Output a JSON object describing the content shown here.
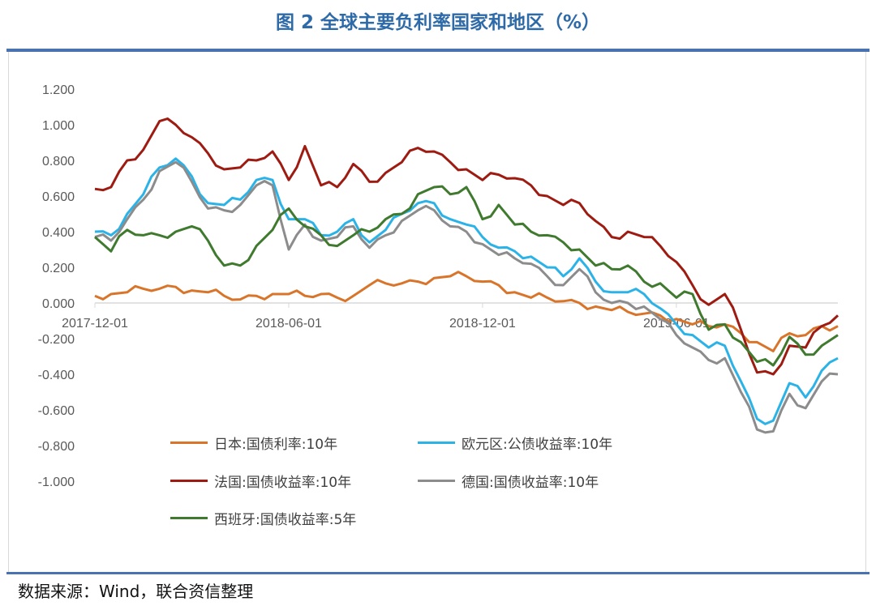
{
  "title": "图 2 全球主要负利率国家和地区（%）",
  "footer": "数据来源：Wind，联合资信整理",
  "chart_data": {
    "type": "line",
    "title": "图 2 全球主要负利率国家和地区（%）",
    "xlabel": "",
    "ylabel": "",
    "ylim": [
      -1.0,
      1.2
    ],
    "yticks": [
      "1.200",
      "1.000",
      "0.800",
      "0.600",
      "0.400",
      "0.200",
      "0.000",
      "-0.200",
      "-0.400",
      "-0.600",
      "-0.800",
      "-1.000"
    ],
    "ytick_values": [
      1.2,
      1.0,
      0.8,
      0.6,
      0.4,
      0.2,
      0,
      -0.2,
      -0.4,
      -0.6,
      -0.8,
      -1.0
    ],
    "xticks": [
      "2017-12-01",
      "2018-06-01",
      "2018-12-01",
      "2019-06-01"
    ],
    "xtick_index": [
      0,
      12,
      24,
      36
    ],
    "grid": false,
    "legend_placement": "bottom-left-inside",
    "x": [
      "2017-12-01",
      "2017-12-16",
      "2018-01-01",
      "2018-01-16",
      "2018-02-01",
      "2018-02-16",
      "2018-03-01",
      "2018-03-16",
      "2018-04-01",
      "2018-04-16",
      "2018-05-01",
      "2018-05-16",
      "2018-06-01",
      "2018-06-16",
      "2018-07-01",
      "2018-07-16",
      "2018-08-01",
      "2018-08-16",
      "2018-09-01",
      "2018-09-16",
      "2018-10-01",
      "2018-10-16",
      "2018-11-01",
      "2018-11-16",
      "2018-12-01",
      "2018-12-16",
      "2019-01-01",
      "2019-01-16",
      "2019-02-01",
      "2019-02-16",
      "2019-03-01",
      "2019-03-16",
      "2019-04-01",
      "2019-04-16",
      "2019-05-01",
      "2019-05-16",
      "2019-06-01",
      "2019-06-16",
      "2019-07-01",
      "2019-07-16",
      "2019-08-01",
      "2019-08-16",
      "2019-09-01",
      "2019-09-16",
      "2019-10-01",
      "2019-10-16",
      "2019-10-31"
    ],
    "series": [
      {
        "name": "日本:国债利率:10年",
        "color": "#d9752b",
        "values": [
          0.04,
          0.05,
          0.06,
          0.08,
          0.08,
          0.09,
          0.07,
          0.06,
          0.04,
          0.02,
          0.04,
          0.05,
          0.05,
          0.04,
          0.05,
          0.03,
          0.04,
          0.1,
          0.11,
          0.11,
          0.12,
          0.14,
          0.15,
          0.15,
          0.12,
          0.1,
          0.06,
          0.03,
          0.03,
          0.01,
          0.0,
          -0.02,
          -0.04,
          -0.05,
          -0.06,
          -0.07,
          -0.09,
          -0.12,
          -0.13,
          -0.12,
          -0.17,
          -0.22,
          -0.27,
          -0.17,
          -0.18,
          -0.13,
          -0.13
        ]
      },
      {
        "name": "欧元区:公债收益率:10年",
        "color": "#2bb3e8",
        "values": [
          0.4,
          0.38,
          0.5,
          0.61,
          0.76,
          0.81,
          0.71,
          0.56,
          0.55,
          0.58,
          0.69,
          0.69,
          0.47,
          0.47,
          0.38,
          0.4,
          0.47,
          0.34,
          0.41,
          0.5,
          0.56,
          0.56,
          0.47,
          0.44,
          0.37,
          0.31,
          0.29,
          0.26,
          0.2,
          0.15,
          0.25,
          0.12,
          0.06,
          0.06,
          0.05,
          -0.03,
          -0.12,
          -0.18,
          -0.25,
          -0.24,
          -0.44,
          -0.65,
          -0.66,
          -0.45,
          -0.53,
          -0.38,
          -0.31
        ]
      },
      {
        "name": "法国:国债收益率:10年",
        "color": "#9e1b12",
        "values": [
          0.64,
          0.65,
          0.8,
          0.86,
          1.02,
          1.0,
          0.93,
          0.84,
          0.75,
          0.76,
          0.8,
          0.85,
          0.69,
          0.88,
          0.66,
          0.65,
          0.78,
          0.68,
          0.73,
          0.79,
          0.87,
          0.85,
          0.79,
          0.75,
          0.69,
          0.72,
          0.7,
          0.66,
          0.6,
          0.55,
          0.56,
          0.46,
          0.37,
          0.4,
          0.37,
          0.32,
          0.23,
          0.1,
          -0.01,
          0.05,
          -0.15,
          -0.39,
          -0.4,
          -0.24,
          -0.25,
          -0.13,
          -0.07
        ]
      },
      {
        "name": "德国:国债收益率:10年",
        "color": "#8c8c8c",
        "values": [
          0.37,
          0.35,
          0.47,
          0.58,
          0.74,
          0.79,
          0.68,
          0.53,
          0.52,
          0.55,
          0.66,
          0.66,
          0.3,
          0.44,
          0.35,
          0.37,
          0.43,
          0.31,
          0.38,
          0.46,
          0.52,
          0.52,
          0.43,
          0.4,
          0.33,
          0.27,
          0.25,
          0.22,
          0.15,
          0.1,
          0.19,
          0.06,
          0.0,
          0.0,
          -0.02,
          -0.09,
          -0.18,
          -0.25,
          -0.32,
          -0.31,
          -0.5,
          -0.71,
          -0.72,
          -0.51,
          -0.59,
          -0.44,
          -0.4
        ]
      },
      {
        "name": "西班牙:国债收益率:5年",
        "color": "#3f7a2e",
        "values": [
          0.37,
          0.29,
          0.41,
          0.38,
          0.38,
          0.4,
          0.43,
          0.35,
          0.21,
          0.21,
          0.32,
          0.41,
          0.53,
          0.43,
          0.38,
          0.32,
          0.38,
          0.4,
          0.47,
          0.5,
          0.61,
          0.65,
          0.61,
          0.65,
          0.47,
          0.55,
          0.44,
          0.4,
          0.38,
          0.34,
          0.3,
          0.21,
          0.19,
          0.21,
          0.12,
          0.11,
          0.03,
          0.05,
          -0.15,
          -0.12,
          -0.22,
          -0.33,
          -0.35,
          -0.19,
          -0.29,
          -0.24,
          -0.18
        ]
      }
    ]
  }
}
